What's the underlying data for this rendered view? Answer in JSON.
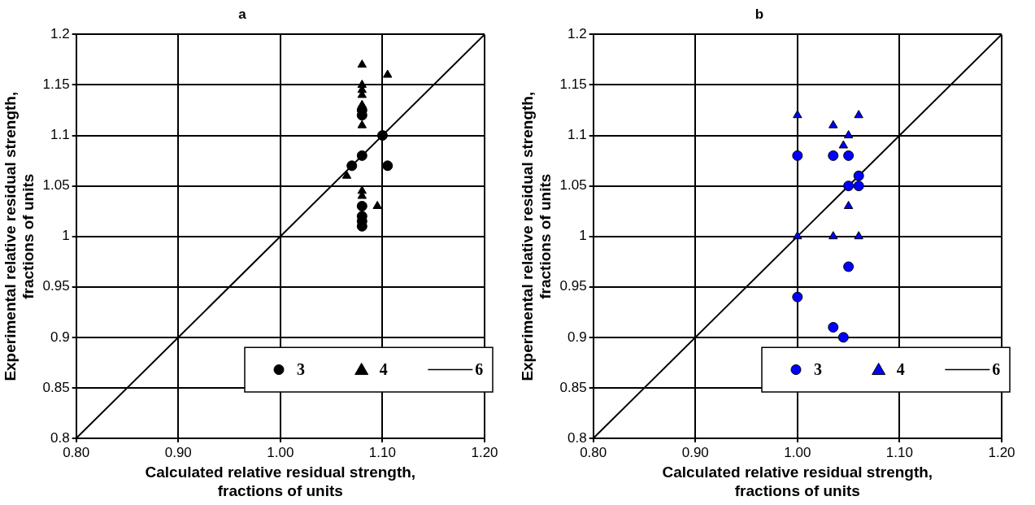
{
  "chart_data": [
    {
      "type": "scatter",
      "title": "a",
      "xlabel": "Calculated relative residual strength, fractions of units",
      "ylabel": "Experimental relative residual strength, fractions of units",
      "xlim": [
        0.8,
        1.2
      ],
      "xticks": [
        {
          "value": 0.8,
          "label": "0.80"
        },
        {
          "value": 0.9,
          "label": "0.90"
        },
        {
          "value": 1.0,
          "label": "1.00"
        },
        {
          "value": 1.1,
          "label": "1.10"
        },
        {
          "value": 1.2,
          "label": "1.20"
        }
      ],
      "ylim": [
        0.8,
        1.2
      ],
      "yticks": [
        0.8,
        0.85,
        0.9,
        0.95,
        1,
        1.05,
        1.1,
        1.15,
        1.2
      ],
      "grid": true,
      "legend": "bottom right",
      "series": [
        {
          "name": "3",
          "color": "#000000",
          "marker": "circle",
          "x": [
            1.08,
            1.08,
            1.08,
            1.08,
            1.07,
            1.08,
            1.1,
            1.105,
            1.08,
            1.08
          ],
          "values": [
            1.01,
            1.015,
            1.02,
            1.03,
            1.07,
            1.08,
            1.1,
            1.07,
            1.12,
            1.125
          ]
        },
        {
          "name": "4",
          "color": "#000000",
          "marker": "triangle",
          "x": [
            1.08,
            1.105,
            1.08,
            1.08,
            1.08,
            1.08,
            1.08,
            1.065,
            1.08,
            1.08,
            1.095
          ],
          "values": [
            1.17,
            1.16,
            1.15,
            1.145,
            1.14,
            1.13,
            1.11,
            1.06,
            1.045,
            1.04,
            1.03
          ]
        },
        {
          "name": "6",
          "type": "line",
          "color": "#000000",
          "marker": "none",
          "x": [
            0.8,
            1.2
          ],
          "values": [
            0.8,
            1.2
          ]
        }
      ]
    },
    {
      "type": "scatter",
      "title": "b",
      "xlabel": "Calculated relative residual strength, fractions of units",
      "ylabel": "Experimental relative residual strength, fractions of units",
      "xlim": [
        0.8,
        1.2
      ],
      "xticks": [
        {
          "value": 0.8,
          "label": "0.80"
        },
        {
          "value": 0.9,
          "label": "0.90"
        },
        {
          "value": 1.0,
          "label": "1.00"
        },
        {
          "value": 1.1,
          "label": "1.10"
        },
        {
          "value": 1.2,
          "label": "1.20"
        }
      ],
      "ylim": [
        0.8,
        1.2
      ],
      "yticks": [
        0.8,
        0.85,
        0.9,
        0.95,
        1,
        1.05,
        1.1,
        1.15,
        1.2
      ],
      "grid": true,
      "legend": "bottom right",
      "series": [
        {
          "name": "3",
          "color": "#0000ff",
          "marker": "circle",
          "x": [
            1.0,
            1.035,
            1.05,
            1.06,
            1.06,
            1.05,
            1.05,
            1.0,
            1.035,
            1.045
          ],
          "values": [
            1.08,
            1.08,
            1.08,
            1.06,
            1.05,
            1.05,
            0.97,
            0.94,
            0.91,
            0.9
          ]
        },
        {
          "name": "4",
          "color": "#0000ff",
          "marker": "triangle",
          "x": [
            1.0,
            1.035,
            1.06,
            1.05,
            1.045,
            1.05,
            1.0,
            1.035,
            1.06
          ],
          "values": [
            1.12,
            1.11,
            1.12,
            1.1,
            1.09,
            1.03,
            1.0,
            1.0,
            1.0
          ]
        },
        {
          "name": "6",
          "type": "line",
          "color": "#000000",
          "marker": "none",
          "x": [
            0.8,
            1.2
          ],
          "values": [
            0.8,
            1.2
          ]
        }
      ]
    }
  ]
}
